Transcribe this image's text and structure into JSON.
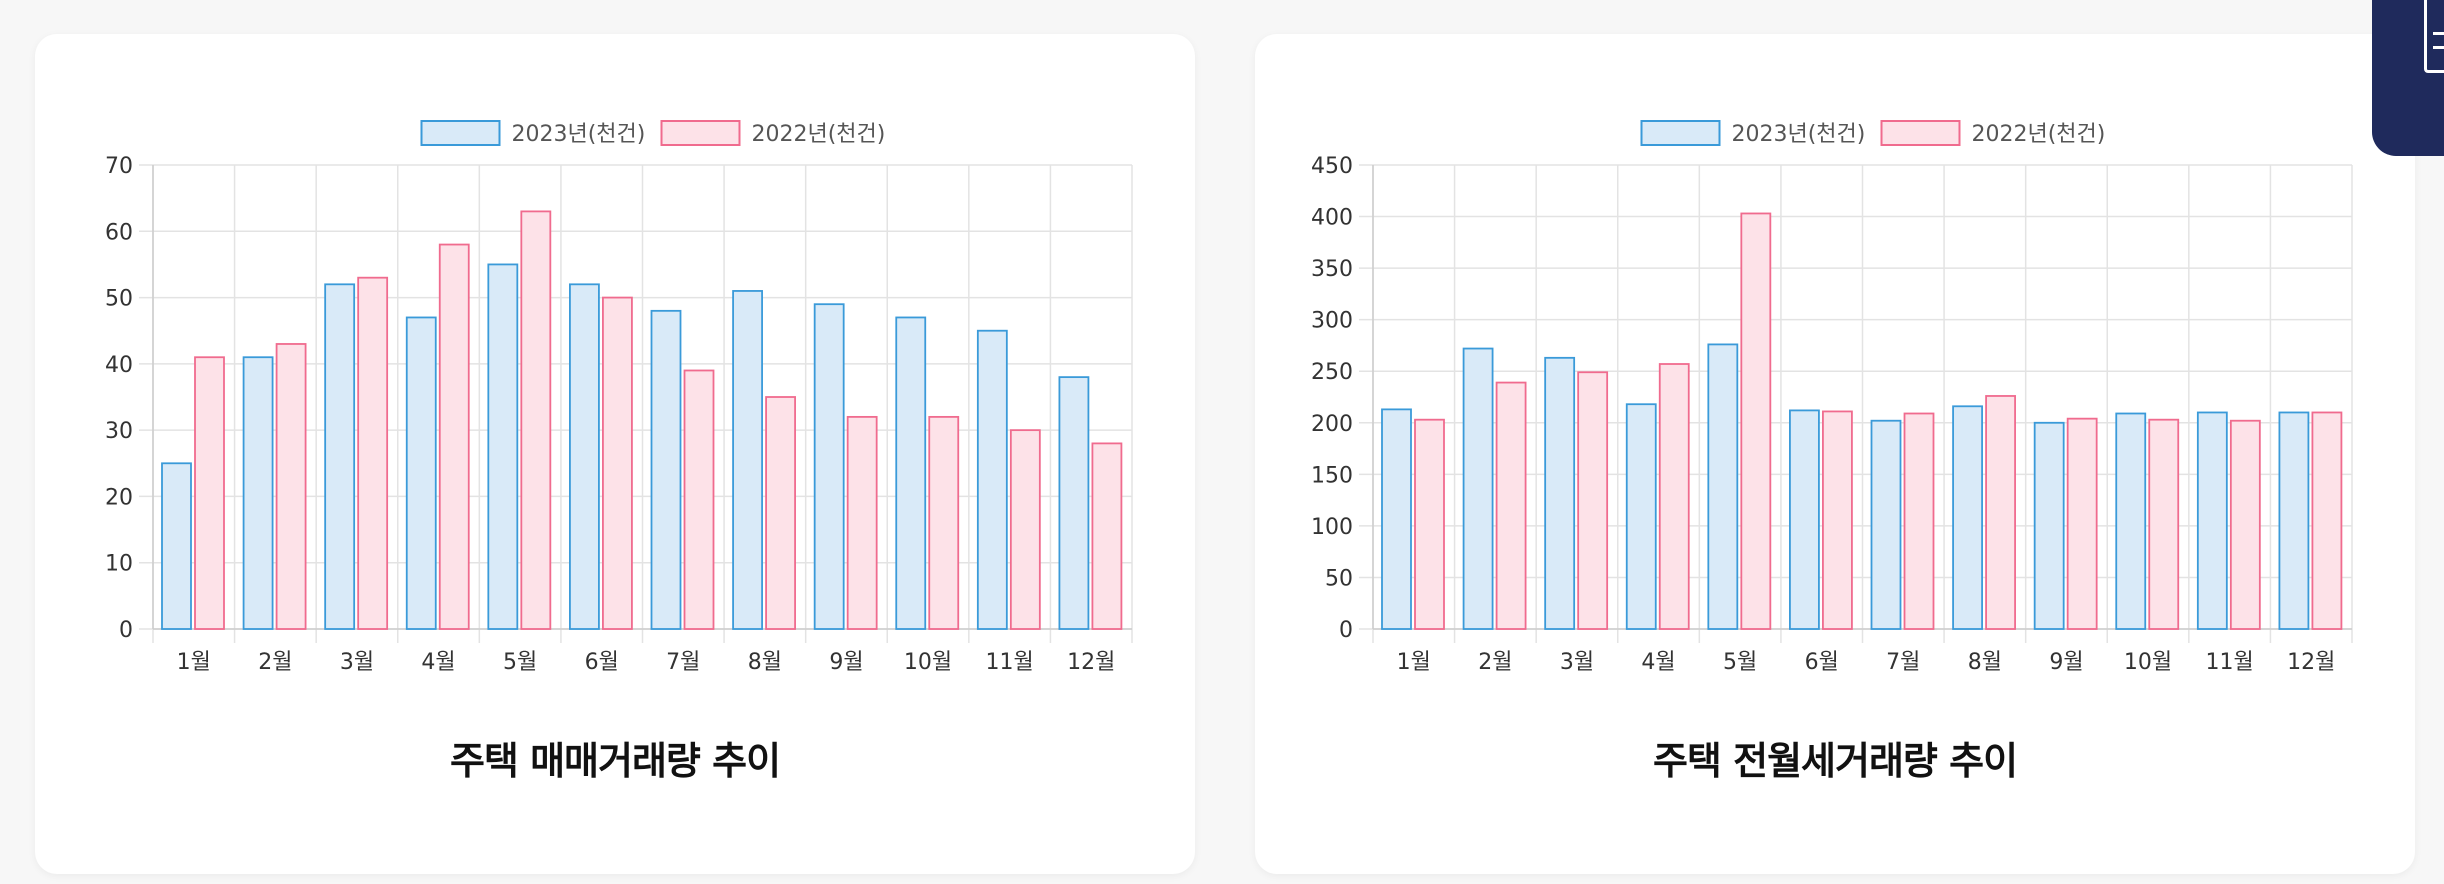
{
  "chart_data": [
    {
      "type": "bar",
      "title": "주택 매매거래량 추이",
      "categories": [
        "1월",
        "2월",
        "3월",
        "4월",
        "5월",
        "6월",
        "7월",
        "8월",
        "9월",
        "10월",
        "11월",
        "12월"
      ],
      "series": [
        {
          "name": "2023년(천건)",
          "color": "#3a9ad9",
          "fill": "#d9eaf8",
          "values": [
            25,
            41,
            52,
            47,
            55,
            52,
            48,
            51,
            49,
            47,
            45,
            38
          ]
        },
        {
          "name": "2022년(천건)",
          "color": "#f06b8e",
          "fill": "#fde2e8",
          "values": [
            41,
            43,
            53,
            58,
            63,
            50,
            39,
            35,
            32,
            32,
            30,
            28
          ]
        }
      ],
      "ylim": [
        0,
        70
      ],
      "yticks": [
        0,
        10,
        20,
        30,
        40,
        50,
        60,
        70
      ],
      "grid": true,
      "legend": "top-center"
    },
    {
      "type": "bar",
      "title": "주택 전월세거래량 추이",
      "categories": [
        "1월",
        "2월",
        "3월",
        "4월",
        "5월",
        "6월",
        "7월",
        "8월",
        "9월",
        "10월",
        "11월",
        "12월"
      ],
      "series": [
        {
          "name": "2023년(천건)",
          "color": "#3a9ad9",
          "fill": "#d9eaf8",
          "values": [
            213,
            272,
            263,
            218,
            276,
            212,
            202,
            216,
            200,
            209,
            210,
            210
          ]
        },
        {
          "name": "2022년(천건)",
          "color": "#f06b8e",
          "fill": "#fde2e8",
          "values": [
            203,
            239,
            249,
            257,
            403,
            211,
            209,
            226,
            204,
            203,
            202,
            210
          ]
        }
      ],
      "ylim": [
        0,
        450
      ],
      "yticks": [
        0,
        50,
        100,
        150,
        200,
        250,
        300,
        350,
        400,
        450
      ],
      "grid": true,
      "legend": "top-center"
    }
  ],
  "side_tab": {
    "icon": "document-icon"
  }
}
